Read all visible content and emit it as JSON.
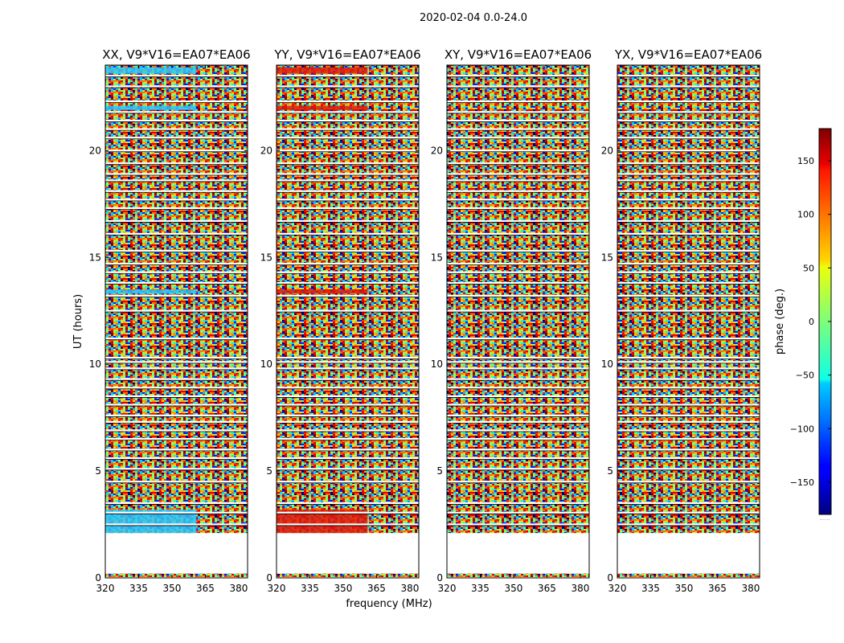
{
  "figure": {
    "suptitle": "2020-02-04 0.0-24.0"
  },
  "chart_data": {
    "type": "heatmap",
    "shared": {
      "xlabel": "frequency (MHz)",
      "ylabel": "UT (hours)",
      "xlim": [
        320,
        384
      ],
      "ylim": [
        0,
        24
      ],
      "xticks": [
        320,
        335,
        350,
        365,
        380
      ],
      "yticks": [
        0,
        5,
        10,
        15,
        20
      ]
    },
    "colorbar": {
      "label": "phase (deg.)",
      "colormap": "jet",
      "range": [
        -180,
        180
      ],
      "ticks": [
        -150,
        -100,
        -50,
        0,
        50,
        100,
        150
      ],
      "tick_labels": [
        "−150",
        "−100",
        "−50",
        "0",
        "50",
        "100",
        "150"
      ],
      "under_label": "......"
    },
    "panels": [
      {
        "title": "XX, V9*V16=EA07*EA06",
        "pol": "XX",
        "tint": "#29c8ff"
      },
      {
        "title": "YY, V9*V16=EA07*EA06",
        "pol": "YY",
        "tint": "#e31a0a"
      },
      {
        "title": "XY, V9*V16=EA07*EA06",
        "pol": "XY",
        "tint": null
      },
      {
        "title": "YX, V9*V16=EA07*EA06",
        "pol": "YX",
        "tint": null
      }
    ],
    "data_coverage": {
      "empty_interval_hours": [
        0.2,
        2.1
      ],
      "scan_gaps_hours": [
        2.5,
        3.05,
        3.5,
        4.5,
        5.1,
        5.6,
        6.0,
        6.5,
        6.9,
        7.3,
        7.6,
        8.1,
        8.5,
        8.9,
        9.3,
        9.8,
        10.1,
        10.3,
        11.2,
        12.5,
        13.2,
        13.8,
        14.3,
        14.7,
        15.3,
        16.1,
        16.7,
        17.3,
        17.7,
        18.1,
        18.6,
        18.9,
        19.4,
        20.0,
        20.6,
        21.0,
        21.4,
        21.8,
        22.3,
        23.0,
        23.5
      ],
      "tinted_intervals_hours": [
        [
          2.1,
          3.2
        ],
        [
          13.3,
          13.5
        ],
        [
          21.9,
          22.1
        ],
        [
          23.6,
          23.9
        ]
      ]
    }
  }
}
